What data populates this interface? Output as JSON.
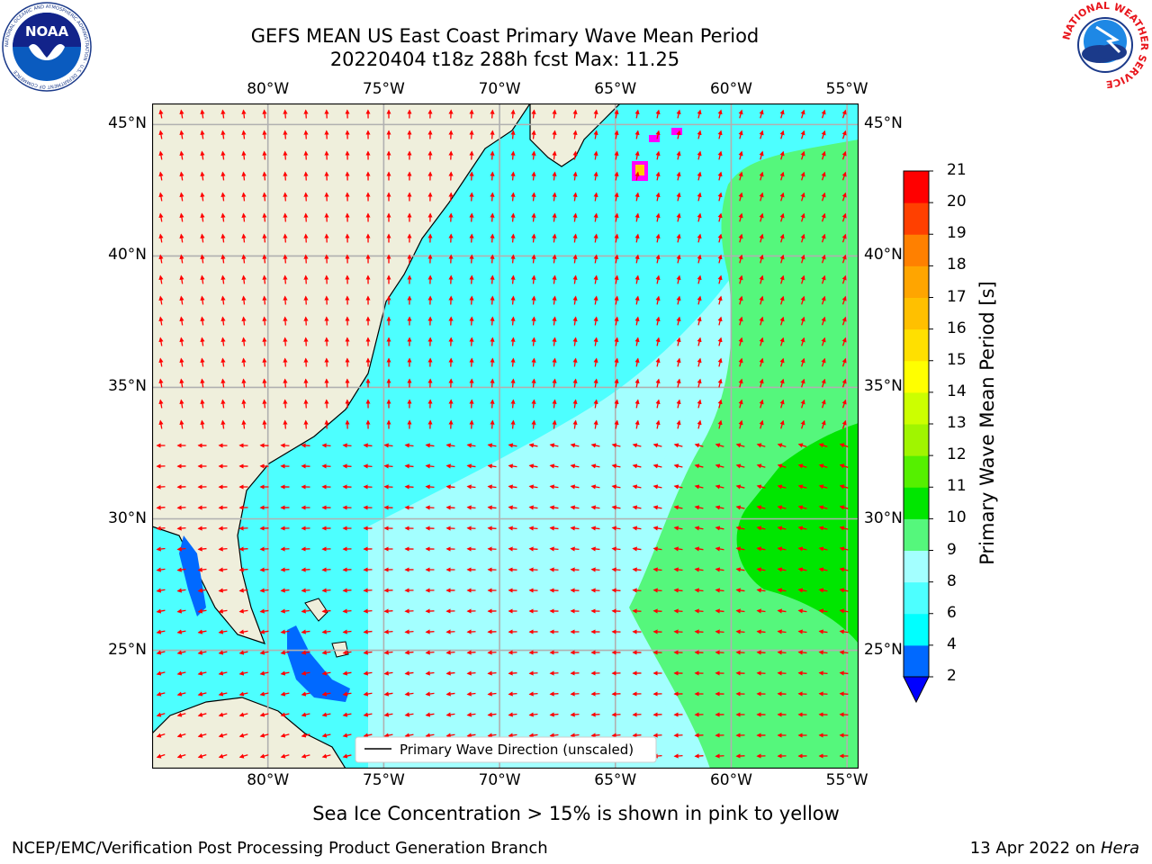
{
  "title": {
    "line1": "GEFS MEAN US East Coast Primary Wave Mean Period",
    "line2": "20220404 t18z 288h fcst   Max: 11.25"
  },
  "map": {
    "lon_labels": [
      "80°W",
      "75°W",
      "70°W",
      "65°W",
      "60°W",
      "55°W"
    ],
    "lat_labels": [
      "45°N",
      "40°N",
      "35°N",
      "30°N",
      "25°N"
    ],
    "lon_values": [
      -80,
      -75,
      -70,
      -65,
      -60,
      -55
    ],
    "lat_values": [
      45,
      40,
      35,
      30,
      25
    ],
    "extent": {
      "lon_min": -85,
      "lon_max": -54.5,
      "lat_min": 20.5,
      "lat_max": 45.8
    },
    "legend_label": "Primary Wave Direction (unscaled)",
    "land_color": "#efefdc",
    "grid": true
  },
  "colorbar": {
    "label": "Primary Wave Mean Period [s]",
    "ticks": [
      "2",
      "4",
      "6",
      "8",
      "9",
      "10",
      "11",
      "12",
      "13",
      "14",
      "15",
      "16",
      "17",
      "18",
      "19",
      "20",
      "21"
    ],
    "colors": [
      "#0069ff",
      "#00ffff",
      "#4dffff",
      "#a3ffff",
      "#55f77c",
      "#00e600",
      "#55f000",
      "#a0f500",
      "#ccff00",
      "#ffff00",
      "#ffe000",
      "#ffc000",
      "#ffa500",
      "#ff8000",
      "#ff4000",
      "#ff0000"
    ],
    "extend_color": "#0000ff"
  },
  "footer": {
    "note": "Sea Ice Concentration > 15% is shown in pink to yellow",
    "credit": "NCEP/EMC/Verification Post Processing Product Generation Branch",
    "date": "13 Apr 2022",
    "on_word": "on",
    "machine": "Hera"
  },
  "logos": {
    "left": "NOAA",
    "left_ring": "NATIONAL OCEANIC AND ATMOSPHERIC ADMINISTRATION · U.S. DEPARTMENT OF COMMERCE",
    "right_ring": "NATIONAL WEATHER SERVICE"
  }
}
